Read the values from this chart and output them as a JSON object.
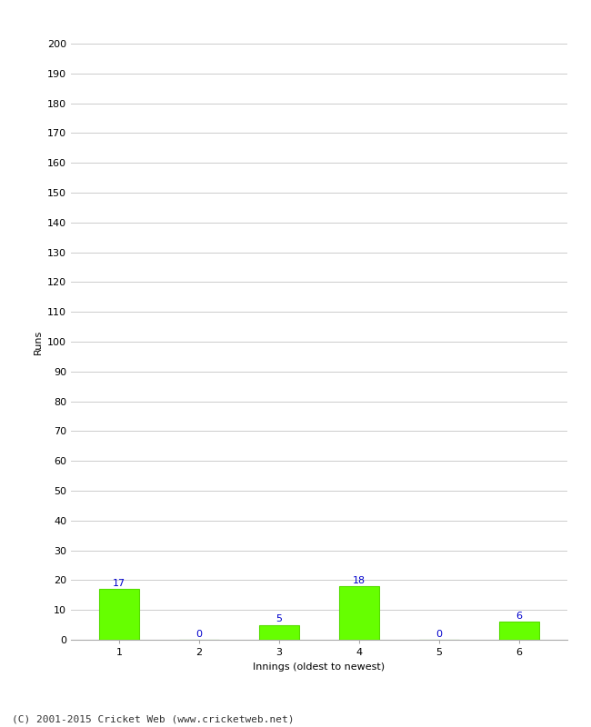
{
  "categories": [
    1,
    2,
    3,
    4,
    5,
    6
  ],
  "values": [
    17,
    0,
    5,
    18,
    0,
    6
  ],
  "bar_color": "#66ff00",
  "bar_edge_color": "#55dd00",
  "label_color": "#0000cc",
  "xlabel": "Innings (oldest to newest)",
  "ylabel": "Runs",
  "ylim": [
    0,
    200
  ],
  "yticks": [
    0,
    10,
    20,
    30,
    40,
    50,
    60,
    70,
    80,
    90,
    100,
    110,
    120,
    130,
    140,
    150,
    160,
    170,
    180,
    190,
    200
  ],
  "footer": "(C) 2001-2015 Cricket Web (www.cricketweb.net)",
  "background_color": "#ffffff",
  "grid_color": "#cccccc",
  "label_fontsize": 8,
  "footer_fontsize": 8,
  "axis_label_fontsize": 8,
  "tick_fontsize": 8,
  "bar_width": 0.5
}
